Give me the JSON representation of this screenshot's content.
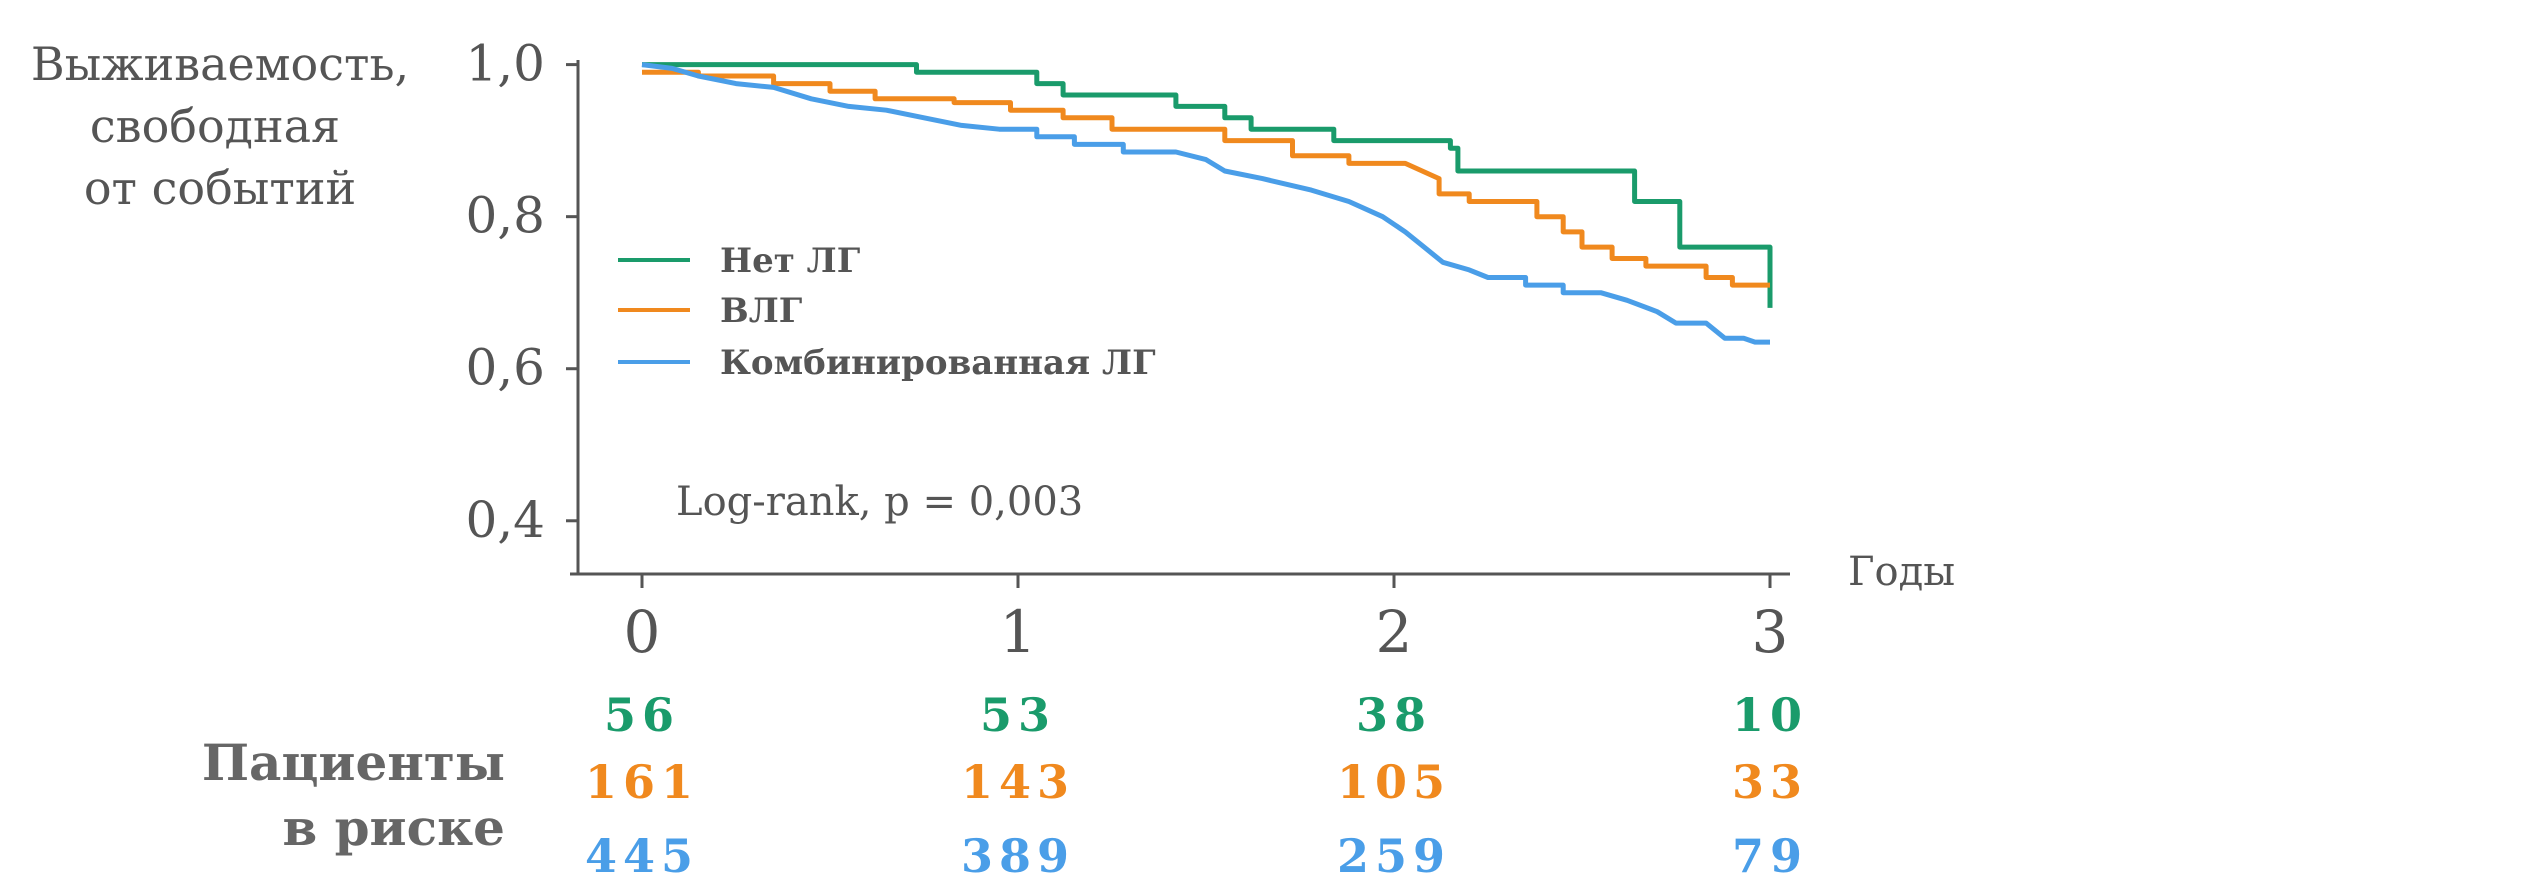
{
  "chart_data": {
    "type": "line",
    "ylabel": [
      "Выживаемость,",
      "свободная",
      "от событий"
    ],
    "xlabel": "Годы",
    "ylim": [
      0.33,
      1.01
    ],
    "xlim": [
      0,
      3
    ],
    "yticks": [
      "1,0",
      "0,8",
      "0,6",
      "0,4"
    ],
    "ytick_values": [
      1.0,
      0.8,
      0.6,
      0.4
    ],
    "xticks": [
      "0",
      "1",
      "2",
      "3"
    ],
    "xtick_values": [
      0,
      1,
      2,
      3
    ],
    "annotation": "Log-rank, p = 0,003",
    "legend_position": "left",
    "series": [
      {
        "name": "Нет ЛГ",
        "color": "#1a9b6b",
        "points": [
          [
            0,
            1.0
          ],
          [
            0.73,
            1.0
          ],
          [
            0.73,
            0.99
          ],
          [
            1.05,
            0.99
          ],
          [
            1.05,
            0.975
          ],
          [
            1.12,
            0.975
          ],
          [
            1.12,
            0.96
          ],
          [
            1.42,
            0.96
          ],
          [
            1.42,
            0.945
          ],
          [
            1.55,
            0.945
          ],
          [
            1.55,
            0.93
          ],
          [
            1.62,
            0.93
          ],
          [
            1.62,
            0.915
          ],
          [
            1.84,
            0.915
          ],
          [
            1.84,
            0.9
          ],
          [
            2.15,
            0.9
          ],
          [
            2.15,
            0.89
          ],
          [
            2.17,
            0.89
          ],
          [
            2.17,
            0.86
          ],
          [
            2.64,
            0.86
          ],
          [
            2.64,
            0.82
          ],
          [
            2.76,
            0.82
          ],
          [
            2.76,
            0.76
          ],
          [
            3.0,
            0.76
          ],
          [
            3.0,
            0.68
          ]
        ]
      },
      {
        "name": "ВЛГ",
        "color": "#f0891e",
        "points": [
          [
            0,
            0.99
          ],
          [
            0.15,
            0.99
          ],
          [
            0.15,
            0.985
          ],
          [
            0.35,
            0.985
          ],
          [
            0.35,
            0.975
          ],
          [
            0.5,
            0.975
          ],
          [
            0.5,
            0.965
          ],
          [
            0.62,
            0.965
          ],
          [
            0.62,
            0.955
          ],
          [
            0.83,
            0.955
          ],
          [
            0.83,
            0.95
          ],
          [
            0.98,
            0.95
          ],
          [
            0.98,
            0.94
          ],
          [
            1.12,
            0.94
          ],
          [
            1.12,
            0.93
          ],
          [
            1.25,
            0.93
          ],
          [
            1.25,
            0.915
          ],
          [
            1.55,
            0.915
          ],
          [
            1.55,
            0.9
          ],
          [
            1.73,
            0.9
          ],
          [
            1.73,
            0.88
          ],
          [
            1.88,
            0.88
          ],
          [
            1.88,
            0.87
          ],
          [
            2.03,
            0.87
          ],
          [
            2.12,
            0.85
          ],
          [
            2.12,
            0.83
          ],
          [
            2.2,
            0.83
          ],
          [
            2.2,
            0.82
          ],
          [
            2.38,
            0.82
          ],
          [
            2.38,
            0.8
          ],
          [
            2.45,
            0.8
          ],
          [
            2.45,
            0.78
          ],
          [
            2.5,
            0.78
          ],
          [
            2.5,
            0.76
          ],
          [
            2.58,
            0.76
          ],
          [
            2.58,
            0.745
          ],
          [
            2.67,
            0.745
          ],
          [
            2.67,
            0.735
          ],
          [
            2.83,
            0.735
          ],
          [
            2.83,
            0.72
          ],
          [
            2.9,
            0.72
          ],
          [
            2.9,
            0.71
          ],
          [
            3.0,
            0.71
          ]
        ]
      },
      {
        "name": "Комбинированная ЛГ",
        "color": "#4a9ee8",
        "points": [
          [
            0,
            1.0
          ],
          [
            0.08,
            0.995
          ],
          [
            0.15,
            0.985
          ],
          [
            0.25,
            0.975
          ],
          [
            0.35,
            0.97
          ],
          [
            0.45,
            0.955
          ],
          [
            0.55,
            0.945
          ],
          [
            0.65,
            0.94
          ],
          [
            0.75,
            0.93
          ],
          [
            0.85,
            0.92
          ],
          [
            0.95,
            0.915
          ],
          [
            1.05,
            0.915
          ],
          [
            1.05,
            0.905
          ],
          [
            1.15,
            0.905
          ],
          [
            1.15,
            0.895
          ],
          [
            1.28,
            0.895
          ],
          [
            1.28,
            0.885
          ],
          [
            1.42,
            0.885
          ],
          [
            1.5,
            0.875
          ],
          [
            1.55,
            0.86
          ],
          [
            1.65,
            0.85
          ],
          [
            1.78,
            0.835
          ],
          [
            1.88,
            0.82
          ],
          [
            1.97,
            0.8
          ],
          [
            2.03,
            0.78
          ],
          [
            2.08,
            0.76
          ],
          [
            2.13,
            0.74
          ],
          [
            2.2,
            0.73
          ],
          [
            2.25,
            0.72
          ],
          [
            2.35,
            0.72
          ],
          [
            2.35,
            0.71
          ],
          [
            2.45,
            0.71
          ],
          [
            2.45,
            0.7
          ],
          [
            2.55,
            0.7
          ],
          [
            2.62,
            0.69
          ],
          [
            2.7,
            0.675
          ],
          [
            2.75,
            0.66
          ],
          [
            2.83,
            0.66
          ],
          [
            2.88,
            0.64
          ],
          [
            2.93,
            0.64
          ],
          [
            2.96,
            0.635
          ],
          [
            3.0,
            0.635
          ]
        ]
      }
    ]
  },
  "risk_table": {
    "label": [
      "Пациенты",
      "в риске"
    ],
    "rows": [
      {
        "color": "#1a9b6b",
        "values": [
          "56",
          "53",
          "38",
          "10"
        ]
      },
      {
        "color": "#f0891e",
        "values": [
          "161",
          "143",
          "105",
          "33"
        ]
      },
      {
        "color": "#4a9ee8",
        "values": [
          "445",
          "389",
          "259",
          "79"
        ]
      }
    ]
  }
}
